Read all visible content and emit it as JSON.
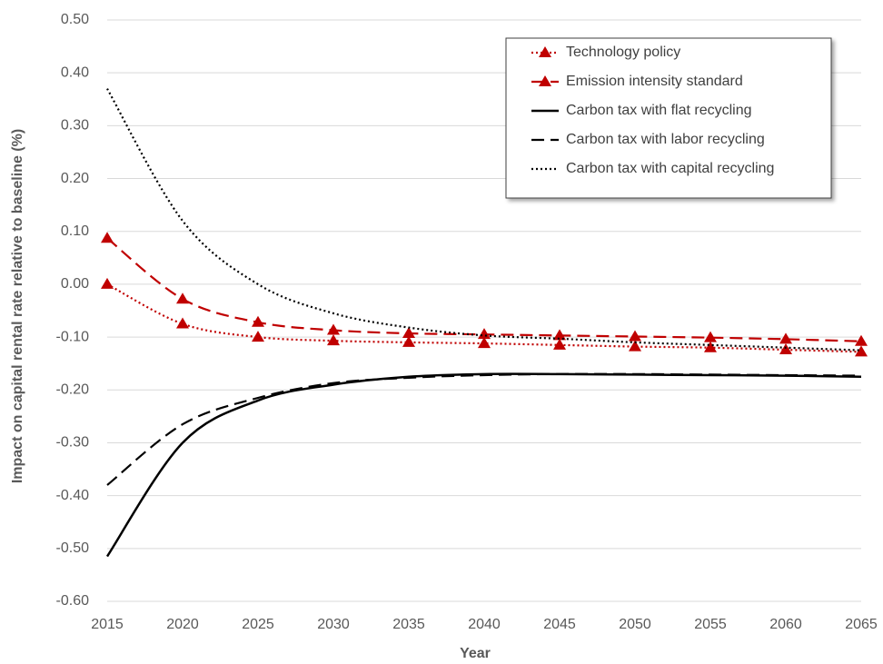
{
  "chart_data": {
    "type": "line",
    "x_label": "Year",
    "y_label": "Impact on capital rental rate relative to baseline (%)",
    "x": [
      2015,
      2020,
      2025,
      2030,
      2035,
      2040,
      2045,
      2050,
      2055,
      2060,
      2065
    ],
    "xlim": [
      2015,
      2065
    ],
    "xticks": [
      2015,
      2020,
      2025,
      2030,
      2035,
      2040,
      2045,
      2050,
      2055,
      2060,
      2065
    ],
    "ylim": [
      -0.6,
      0.5
    ],
    "yticks": [
      {
        "value": 0.5,
        "label": "0.50"
      },
      {
        "value": 0.4,
        "label": "0.40"
      },
      {
        "value": 0.3,
        "label": "0.30"
      },
      {
        "value": 0.2,
        "label": "0.20"
      },
      {
        "value": 0.1,
        "label": "0.10"
      },
      {
        "value": 0,
        "label": "0.00"
      },
      {
        "value": -0.1,
        "label": "-0.10"
      },
      {
        "value": -0.2,
        "label": "-0.20"
      },
      {
        "value": -0.3,
        "label": "-0.30"
      },
      {
        "value": -0.4,
        "label": "-0.40"
      },
      {
        "value": -0.5,
        "label": "-0.50"
      },
      {
        "value": -0.6,
        "label": "-0.60"
      }
    ],
    "grid": true,
    "legend": "upper right",
    "series": [
      {
        "name": "Technology policy",
        "color": "#c00000",
        "dash": "dotted",
        "marker": "triangle",
        "values": [
          0.0,
          -0.075,
          -0.1,
          -0.107,
          -0.11,
          -0.112,
          -0.115,
          -0.118,
          -0.12,
          -0.124,
          -0.128
        ]
      },
      {
        "name": "Emission intensity standard",
        "color": "#c00000",
        "dash": "dashed",
        "marker": "triangle",
        "values": [
          0.087,
          -0.028,
          -0.072,
          -0.087,
          -0.093,
          -0.095,
          -0.097,
          -0.099,
          -0.101,
          -0.104,
          -0.108
        ]
      },
      {
        "name": "Carbon tax with flat recycling",
        "color": "#000000",
        "dash": "solid",
        "values": [
          -0.515,
          -0.3,
          -0.22,
          -0.19,
          -0.175,
          -0.17,
          -0.17,
          -0.171,
          -0.172,
          -0.173,
          -0.175
        ]
      },
      {
        "name": "Carbon tax with labor recycling",
        "color": "#000000",
        "dash": "dashed",
        "values": [
          -0.38,
          -0.265,
          -0.215,
          -0.187,
          -0.177,
          -0.172,
          -0.17,
          -0.17,
          -0.171,
          -0.172,
          -0.173
        ]
      },
      {
        "name": "Carbon tax with capital recycling",
        "color": "#000000",
        "dash": "dotted",
        "values": [
          0.37,
          0.12,
          0.0,
          -0.055,
          -0.082,
          -0.097,
          -0.103,
          -0.11,
          -0.115,
          -0.12,
          -0.125
        ]
      }
    ]
  }
}
